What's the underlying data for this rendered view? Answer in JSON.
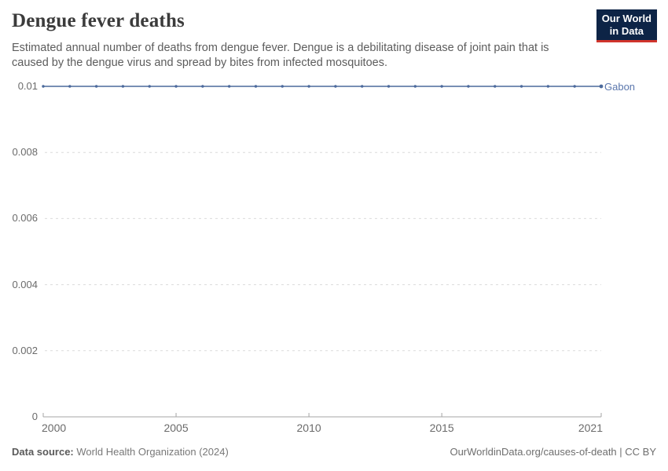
{
  "header": {
    "title": "Dengue fever deaths",
    "subtitle": "Estimated annual number of deaths from dengue fever. Dengue is a debilitating disease of joint pain that is caused by the dengue virus and spread by bites from infected mosquitoes.",
    "logo": {
      "line1": "Our World",
      "line2": "in Data"
    }
  },
  "chart_data": {
    "type": "line",
    "title": "Dengue fever deaths",
    "xlim": [
      2000,
      2021
    ],
    "ylim": [
      0,
      0.01
    ],
    "grid": "horizontal-dashed",
    "legend_position": "end-of-line",
    "x": [
      2000,
      2001,
      2002,
      2003,
      2004,
      2005,
      2006,
      2007,
      2008,
      2009,
      2010,
      2011,
      2012,
      2013,
      2014,
      2015,
      2016,
      2017,
      2018,
      2019,
      2020,
      2021
    ],
    "series": [
      {
        "name": "Gabon",
        "color": "#4C6A9C",
        "values": [
          0.01,
          0.01,
          0.01,
          0.01,
          0.01,
          0.01,
          0.01,
          0.01,
          0.01,
          0.01,
          0.01,
          0.01,
          0.01,
          0.01,
          0.01,
          0.01,
          0.01,
          0.01,
          0.01,
          0.01,
          0.01,
          0.01
        ]
      }
    ],
    "xticks": [
      {
        "value": 2000,
        "label": "2000"
      },
      {
        "value": 2005,
        "label": "2005"
      },
      {
        "value": 2010,
        "label": "2010"
      },
      {
        "value": 2015,
        "label": "2015"
      },
      {
        "value": 2021,
        "label": "2021"
      }
    ],
    "yticks": [
      {
        "value": 0,
        "label": "0"
      },
      {
        "value": 0.002,
        "label": "0.002"
      },
      {
        "value": 0.004,
        "label": "0.004"
      },
      {
        "value": 0.006,
        "label": "0.006"
      },
      {
        "value": 0.008,
        "label": "0.008"
      },
      {
        "value": 0.01,
        "label": "0.01"
      }
    ]
  },
  "footer": {
    "source_label": "Data source:",
    "source_value": "World Health Organization (2024)",
    "rights": "OurWorldinData.org/causes-of-death | CC BY"
  },
  "colors": {
    "line": "#4C6A9C",
    "entity_label": "#5b77ad",
    "grid": "#dcdcdc",
    "axis": "#a5a5a5",
    "tick_text": "#6b6b6b",
    "logo_navy": "#0d2446",
    "logo_red": "#d0342c"
  }
}
